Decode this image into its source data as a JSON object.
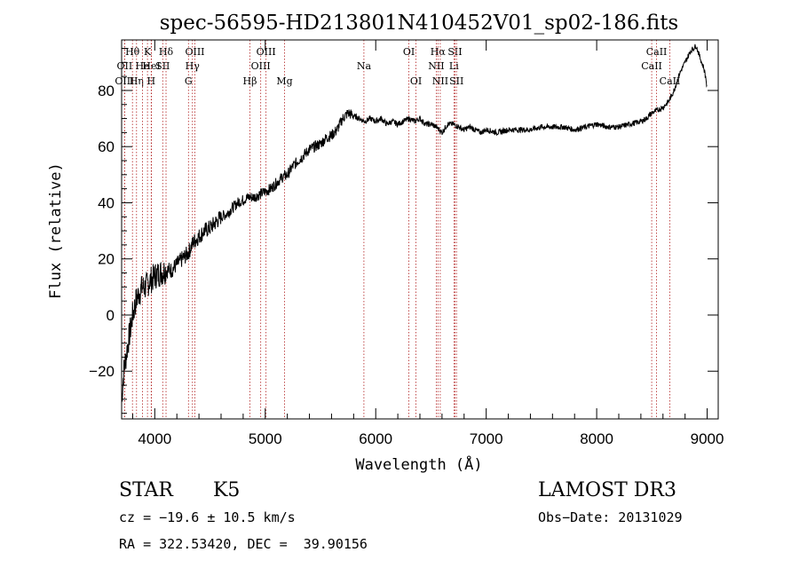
{
  "chart_data": {
    "type": "line",
    "title": "spec-56595-HD213801N410452V01_sp02-186.fits",
    "xlabel": "Wavelength (Å)",
    "ylabel": "Flux (relative)",
    "xlim": [
      3700,
      9100
    ],
    "ylim": [
      -37,
      98
    ],
    "xticks": [
      4000,
      5000,
      6000,
      7000,
      8000,
      9000
    ],
    "yticks": [
      -20,
      0,
      20,
      40,
      60,
      80
    ],
    "grid": false,
    "series": [
      {
        "name": "flux",
        "x": [
          3700,
          3720,
          3750,
          3780,
          3800,
          3830,
          3860,
          3890,
          3920,
          3950,
          3980,
          4000,
          4050,
          4100,
          4150,
          4200,
          4250,
          4300,
          4350,
          4400,
          4450,
          4500,
          4550,
          4600,
          4650,
          4700,
          4750,
          4800,
          4850,
          4900,
          4950,
          5000,
          5050,
          5100,
          5150,
          5200,
          5250,
          5300,
          5350,
          5400,
          5450,
          5500,
          5550,
          5600,
          5650,
          5700,
          5750,
          5800,
          5850,
          5900,
          5950,
          6000,
          6050,
          6100,
          6150,
          6200,
          6250,
          6300,
          6350,
          6400,
          6450,
          6500,
          6550,
          6600,
          6650,
          6700,
          6750,
          6800,
          6850,
          6900,
          6950,
          7000,
          7100,
          7200,
          7300,
          7400,
          7500,
          7600,
          7700,
          7800,
          7900,
          8000,
          8100,
          8200,
          8300,
          8400,
          8450,
          8500,
          8550,
          8600,
          8650,
          8700,
          8750,
          8800,
          8850,
          8900,
          8950,
          8970,
          8990,
          9000
        ],
        "y": [
          -30,
          -20,
          -12,
          -5,
          0,
          5,
          8,
          10,
          10,
          12,
          13,
          14,
          15,
          16,
          16,
          18,
          20,
          22,
          26,
          28,
          30,
          31,
          33,
          35,
          36,
          38,
          40,
          41,
          42,
          42,
          43,
          44,
          45,
          47,
          49,
          50,
          53,
          55,
          57,
          59,
          60,
          61,
          63,
          64,
          66,
          70,
          72,
          71,
          70,
          69,
          70,
          69,
          70,
          68,
          69,
          68,
          69,
          70,
          69,
          70,
          68,
          68,
          67,
          65,
          68,
          68,
          67,
          66,
          67,
          66,
          65,
          66,
          65,
          66,
          66,
          66,
          67,
          67,
          67,
          66,
          67,
          68,
          67,
          67,
          68,
          69,
          70,
          72,
          73,
          74,
          76,
          80,
          86,
          90,
          94,
          96,
          90,
          88,
          84,
          80
        ]
      }
    ],
    "line_markers": [
      {
        "label": "OII",
        "x": 3727,
        "row": 2
      },
      {
        "label": "OIII",
        "x": 3727,
        "row": 3
      },
      {
        "label": "Hθ",
        "x": 3798,
        "row": 1
      },
      {
        "label": "Hη",
        "x": 3835,
        "row": 3
      },
      {
        "label": "He",
        "x": 3889,
        "row": 2
      },
      {
        "label": "K",
        "x": 3934,
        "row": 1
      },
      {
        "label": "H",
        "x": 3968,
        "row": 3
      },
      {
        "label": "HeI",
        "x": 3970,
        "row": 2
      },
      {
        "label": "Hδ",
        "x": 4102,
        "row": 1
      },
      {
        "label": "SII",
        "x": 4072,
        "row": 2
      },
      {
        "label": "OIII",
        "x": 4363,
        "row": 1
      },
      {
        "label": "Hγ",
        "x": 4341,
        "row": 2
      },
      {
        "label": "G",
        "x": 4305,
        "row": 3
      },
      {
        "label": "Hβ",
        "x": 4861,
        "row": 3
      },
      {
        "label": "OIII",
        "x": 5007,
        "row": 1
      },
      {
        "label": "OIII",
        "x": 4959,
        "row": 2
      },
      {
        "label": "Mg",
        "x": 5175,
        "row": 3
      },
      {
        "label": "Na",
        "x": 5893,
        "row": 2
      },
      {
        "label": "OI",
        "x": 6300,
        "row": 1
      },
      {
        "label": "OI",
        "x": 6364,
        "row": 3
      },
      {
        "label": "Hα",
        "x": 6563,
        "row": 1
      },
      {
        "label": "NII",
        "x": 6548,
        "row": 2
      },
      {
        "label": "NII",
        "x": 6584,
        "row": 3
      },
      {
        "label": "SII",
        "x": 6717,
        "row": 1
      },
      {
        "label": "Li",
        "x": 6708,
        "row": 2
      },
      {
        "label": "SII",
        "x": 6731,
        "row": 3
      },
      {
        "label": "CaII",
        "x": 8542,
        "row": 1
      },
      {
        "label": "CaII",
        "x": 8498,
        "row": 2
      },
      {
        "label": "CaII",
        "x": 8662,
        "row": 3
      }
    ]
  },
  "info": {
    "class": "STAR",
    "subclass": "K5",
    "survey": "LAMOST DR3",
    "cz": "cz = −19.6 ± 10.5 km/s",
    "obs_date": "Obs−Date: 20131029",
    "coords": "RA = 322.53420, DEC =  39.90156"
  },
  "colors": {
    "line": "#000000",
    "marker": "#b22222",
    "background": "#ffffff"
  }
}
